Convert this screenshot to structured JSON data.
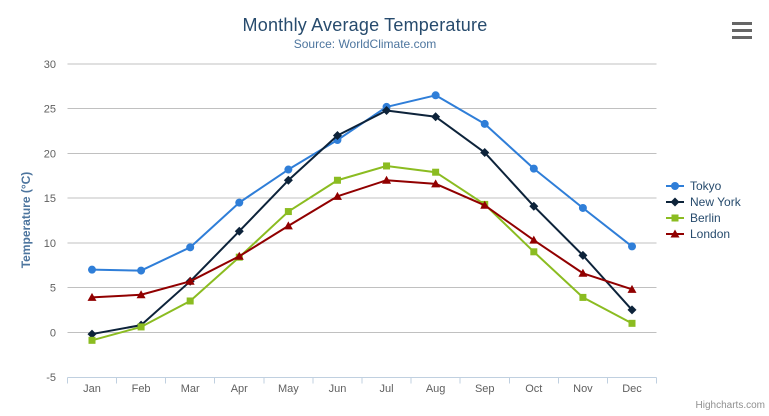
{
  "chart_data": {
    "type": "line",
    "title": "Monthly Average Temperature",
    "subtitle": "Source: WorldClimate.com",
    "ylabel": "Temperature (°C)",
    "xlabel": "",
    "ylim": [
      -5,
      30
    ],
    "y_ticks": [
      -5,
      0,
      5,
      10,
      15,
      20,
      25,
      30
    ],
    "grid": true,
    "legend_position": "right",
    "categories": [
      "Jan",
      "Feb",
      "Mar",
      "Apr",
      "May",
      "Jun",
      "Jul",
      "Aug",
      "Sep",
      "Oct",
      "Nov",
      "Dec"
    ],
    "series": [
      {
        "name": "Tokyo",
        "color": "#2f7ed8",
        "marker": "circle",
        "values": [
          7.0,
          6.9,
          9.5,
          14.5,
          18.2,
          21.5,
          25.2,
          26.5,
          23.3,
          18.3,
          13.9,
          9.6
        ]
      },
      {
        "name": "New York",
        "color": "#0d233a",
        "marker": "diamond",
        "values": [
          -0.2,
          0.8,
          5.7,
          11.3,
          17.0,
          22.0,
          24.8,
          24.1,
          20.1,
          14.1,
          8.6,
          2.5
        ]
      },
      {
        "name": "Berlin",
        "color": "#8bbc21",
        "marker": "square",
        "values": [
          -0.9,
          0.6,
          3.5,
          8.4,
          13.5,
          17.0,
          18.6,
          17.9,
          14.3,
          9.0,
          3.9,
          1.0
        ]
      },
      {
        "name": "London",
        "color": "#910000",
        "marker": "triangle",
        "values": [
          3.9,
          4.2,
          5.7,
          8.5,
          11.9,
          15.2,
          17.0,
          16.6,
          14.2,
          10.3,
          6.6,
          4.8
        ]
      }
    ]
  },
  "colors": {
    "title": "#274b6d",
    "subtitle": "#4d759e",
    "axis_title": "#4d759e",
    "tick_labels": "#606060",
    "grid": "#c0c0c0",
    "axis_line": "#c0d0e0",
    "legend_text": "#274b6d",
    "credits": "#909090",
    "export_icon": "#666666"
  },
  "credits": {
    "text": "Highcharts.com"
  }
}
